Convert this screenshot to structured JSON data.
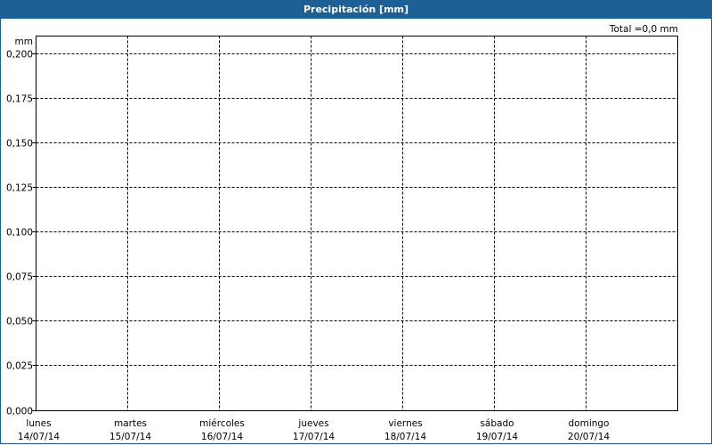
{
  "chart_data": {
    "type": "bar",
    "title": "Precipitación [mm]",
    "ylabel": "mm",
    "total_label": "Total =0,0 mm",
    "ylim": [
      0,
      0.21
    ],
    "yticks": [
      0,
      0.025,
      0.05,
      0.075,
      0.1,
      0.125,
      0.15,
      0.175,
      0.2
    ],
    "ytick_labels": [
      "0,000",
      "0,025",
      "0,050",
      "0,075",
      "0,100",
      "0,125",
      "0,150",
      "0,175",
      "0,200"
    ],
    "categories": [
      {
        "day": "lunes",
        "date": "14/07/14"
      },
      {
        "day": "martes",
        "date": "15/07/14"
      },
      {
        "day": "miércoles",
        "date": "16/07/14"
      },
      {
        "day": "jueves",
        "date": "17/07/14"
      },
      {
        "day": "viernes",
        "date": "18/07/14"
      },
      {
        "day": "sábado",
        "date": "19/07/14"
      },
      {
        "day": "domingo",
        "date": "20/07/14"
      }
    ],
    "values": [
      0,
      0,
      0,
      0,
      0,
      0,
      0
    ],
    "grid": true,
    "colors": {
      "header": "#1c6096"
    }
  }
}
